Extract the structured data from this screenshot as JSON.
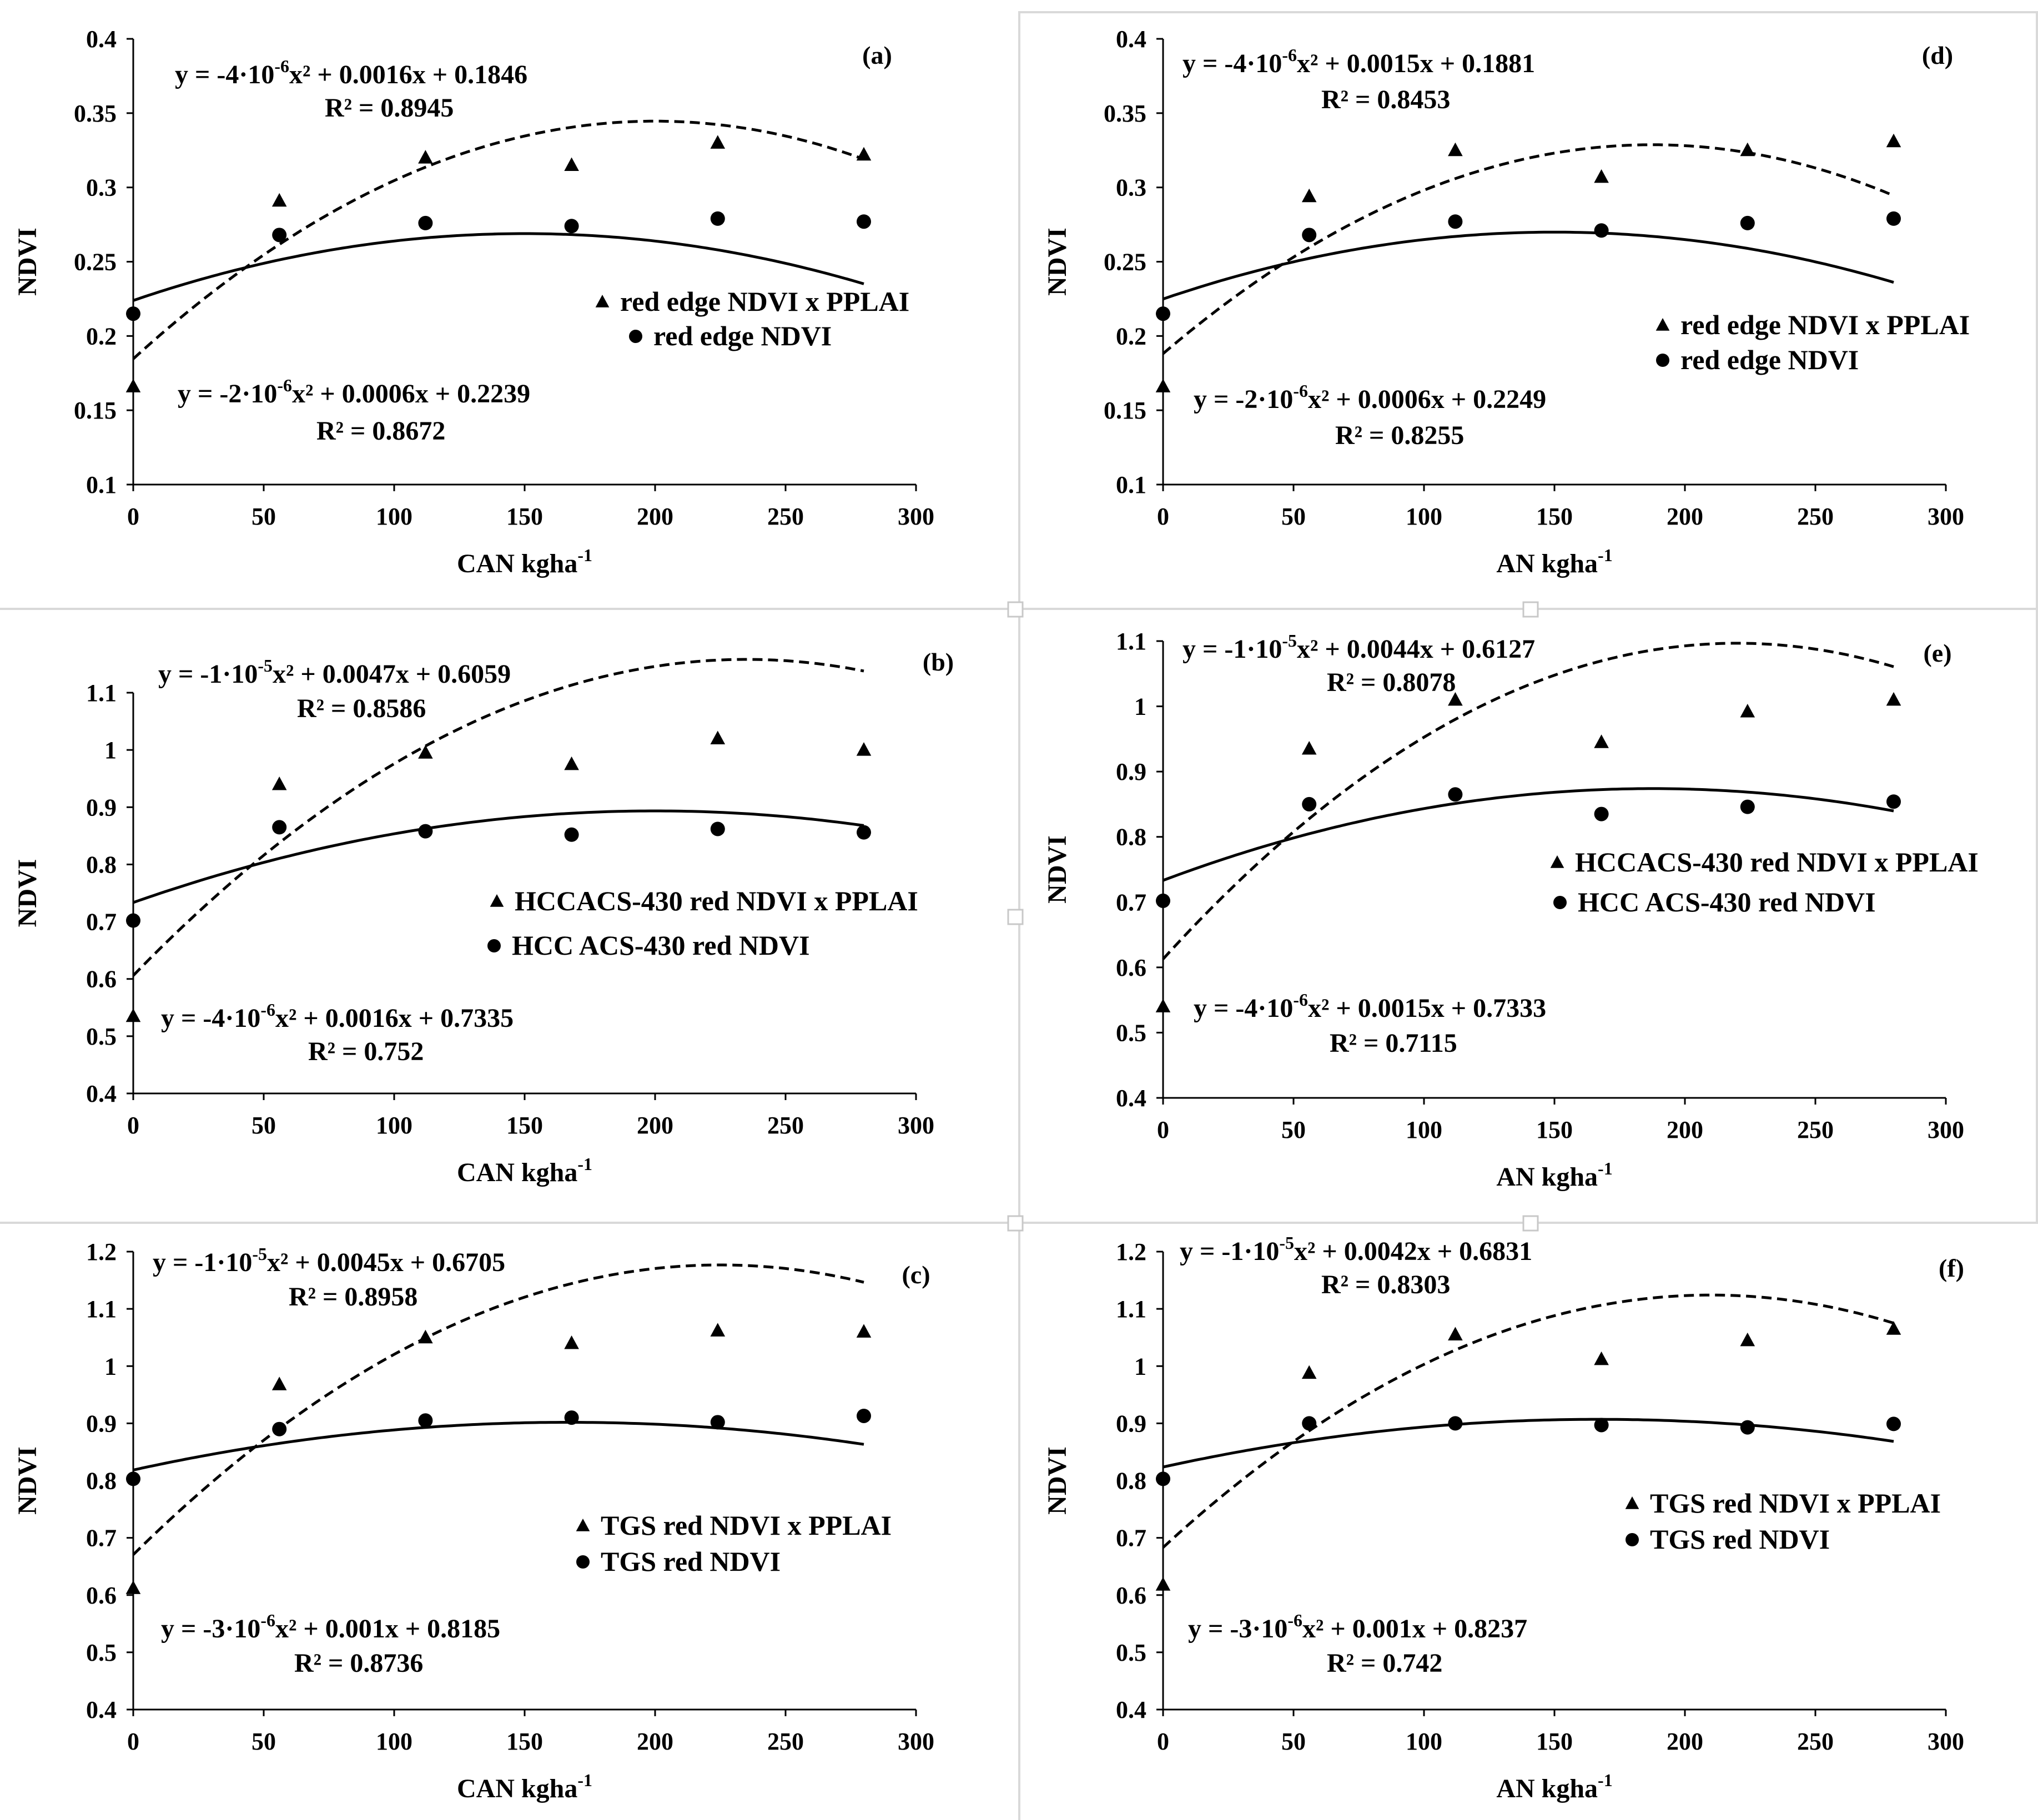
{
  "figure": {
    "shared": {
      "ylabel": "NDVI",
      "x_ticks": [
        "0",
        "50",
        "100",
        "150",
        "200",
        "250",
        "300"
      ],
      "xlim": [
        0,
        300
      ]
    }
  },
  "chart_data": [
    {
      "id": "a",
      "type": "scatter",
      "panel_label": "(a)",
      "xlabel_main": "CAN kgha",
      "xlabel_sup": "-1",
      "ylabel": "NDVI",
      "xlim": [
        0,
        300
      ],
      "ylim": [
        0.1,
        0.4
      ],
      "y_ticks": [
        "0.1",
        "0.15",
        "0.2",
        "0.25",
        "0.3",
        "0.35",
        "0.4"
      ],
      "x_ticks": [
        "0",
        "50",
        "100",
        "150",
        "200",
        "250",
        "300"
      ],
      "x": [
        0,
        56,
        112,
        168,
        224,
        280
      ],
      "series": [
        {
          "name": "red edge NDVI x PPLAI",
          "marker": "triangle",
          "line": "dashed",
          "values": [
            0.166,
            0.291,
            0.32,
            0.315,
            0.33,
            0.322
          ],
          "fit": {
            "a": -4e-06,
            "b": 0.0016,
            "c": 0.1846
          },
          "eq_prefix": "y = -4·10",
          "eq_exp": "-6",
          "eq_suffix": "x² + 0.0016x + 0.1846",
          "r2": "R² = 0.8945"
        },
        {
          "name": "red edge NDVI",
          "marker": "circle",
          "line": "solid",
          "values": [
            0.215,
            0.268,
            0.276,
            0.274,
            0.279,
            0.277
          ],
          "fit": {
            "a": -2e-06,
            "b": 0.0006,
            "c": 0.2239
          },
          "eq_prefix": "y = -2·10",
          "eq_exp": "-6",
          "eq_suffix": "x² + 0.0006x + 0.2239",
          "r2": "R² = 0.8672"
        }
      ]
    },
    {
      "id": "b",
      "type": "scatter",
      "panel_label": "(b)",
      "xlabel_main": "CAN kgha",
      "xlabel_sup": "-1",
      "ylabel": "NDVI",
      "xlim": [
        0,
        300
      ],
      "ylim": [
        0.4,
        1.1
      ],
      "y_ticks": [
        "0.4",
        "0.5",
        "0.6",
        "0.7",
        "0.8",
        "0.9",
        "1",
        "1.1"
      ],
      "x_ticks": [
        "0",
        "50",
        "100",
        "150",
        "200",
        "250",
        "300"
      ],
      "x": [
        0,
        56,
        112,
        168,
        224,
        280
      ],
      "series": [
        {
          "name": "HCCACS-430 red NDVI x PPLAI",
          "marker": "triangle",
          "line": "dashed",
          "values": [
            0.535,
            0.94,
            0.995,
            0.975,
            1.02,
            1.0
          ],
          "fit": {
            "a": -1e-05,
            "b": 0.0047,
            "c": 0.6059
          },
          "eq_prefix": "y = -1·10",
          "eq_exp": "-5",
          "eq_suffix": "x² + 0.0047x + 0.6059",
          "r2": "R² = 0.8586"
        },
        {
          "name": "HCC ACS-430 red NDVI",
          "marker": "circle",
          "line": "solid",
          "values": [
            0.702,
            0.865,
            0.858,
            0.852,
            0.862,
            0.856
          ],
          "fit": {
            "a": -4e-06,
            "b": 0.0016,
            "c": 0.7335
          },
          "eq_prefix": "y = -4·10",
          "eq_exp": "-6",
          "eq_suffix": "x² + 0.0016x + 0.7335",
          "r2": "R² = 0.752"
        }
      ]
    },
    {
      "id": "c",
      "type": "scatter",
      "panel_label": "(c)",
      "xlabel_main": "CAN kgha",
      "xlabel_sup": "-1",
      "ylabel": "NDVI",
      "xlim": [
        0,
        300
      ],
      "ylim": [
        0.4,
        1.2
      ],
      "y_ticks": [
        "0.4",
        "0.5",
        "0.6",
        "0.7",
        "0.8",
        "0.9",
        "1",
        "1.1",
        "1.2"
      ],
      "x_ticks": [
        "0",
        "50",
        "100",
        "150",
        "200",
        "250",
        "300"
      ],
      "x": [
        0,
        56,
        112,
        168,
        224,
        280
      ],
      "series": [
        {
          "name": "TGS red NDVI x PPLAI",
          "marker": "triangle",
          "line": "dashed",
          "values": [
            0.612,
            0.968,
            1.05,
            1.04,
            1.062,
            1.06
          ],
          "fit": {
            "a": -1e-05,
            "b": 0.0045,
            "c": 0.6705
          },
          "eq_prefix": "y = -1·10",
          "eq_exp": "-5",
          "eq_suffix": "x² + 0.0045x + 0.6705",
          "r2": "R² = 0.8958"
        },
        {
          "name": "TGS red NDVI",
          "marker": "circle",
          "line": "solid",
          "values": [
            0.803,
            0.89,
            0.905,
            0.91,
            0.902,
            0.913
          ],
          "fit": {
            "a": -3e-06,
            "b": 0.001,
            "c": 0.8185
          },
          "eq_prefix": "y = -3·10",
          "eq_exp": "-6",
          "eq_suffix": "x² + 0.001x + 0.8185",
          "r2": "R² = 0.8736"
        }
      ]
    },
    {
      "id": "d",
      "type": "scatter",
      "panel_label": "(d)",
      "xlabel_main": "AN kgha",
      "xlabel_sup": "-1",
      "ylabel": "NDVI",
      "xlim": [
        0,
        300
      ],
      "ylim": [
        0.1,
        0.4
      ],
      "y_ticks": [
        "0.1",
        "0.15",
        "0.2",
        "0.25",
        "0.3",
        "0.35",
        "0.4"
      ],
      "x_ticks": [
        "0",
        "50",
        "100",
        "150",
        "200",
        "250",
        "300"
      ],
      "x": [
        0,
        56,
        112,
        168,
        224,
        280
      ],
      "series": [
        {
          "name": "red edge NDVI x PPLAI",
          "marker": "triangle",
          "line": "dashed",
          "values": [
            0.166,
            0.294,
            0.325,
            0.307,
            0.325,
            0.331
          ],
          "fit": {
            "a": -4e-06,
            "b": 0.0015,
            "c": 0.1881
          },
          "eq_prefix": "y = -4·10",
          "eq_exp": "-6",
          "eq_suffix": "x² + 0.0015x + 0.1881",
          "r2": "R² = 0.8453"
        },
        {
          "name": "red edge NDVI",
          "marker": "circle",
          "line": "solid",
          "values": [
            0.215,
            0.268,
            0.277,
            0.271,
            0.276,
            0.279
          ],
          "fit": {
            "a": -2e-06,
            "b": 0.0006,
            "c": 0.2249
          },
          "eq_prefix": "y = -2·10",
          "eq_exp": "-6",
          "eq_suffix": "x² + 0.0006x + 0.2249",
          "r2": "R² = 0.8255"
        }
      ]
    },
    {
      "id": "e",
      "type": "scatter",
      "panel_label": "(e)",
      "xlabel_main": "AN kgha",
      "xlabel_sup": "-1",
      "ylabel": "NDVI",
      "xlim": [
        0,
        300
      ],
      "ylim": [
        0.4,
        1.1
      ],
      "y_ticks": [
        "0.4",
        "0.5",
        "0.6",
        "0.7",
        "0.8",
        "0.9",
        "1",
        "1.1"
      ],
      "x_ticks": [
        "0",
        "50",
        "100",
        "150",
        "200",
        "250",
        "300"
      ],
      "x": [
        0,
        56,
        112,
        168,
        224,
        280
      ],
      "series": [
        {
          "name": "HCCACS-430 red NDVI x PPLAI",
          "marker": "triangle",
          "line": "dashed",
          "values": [
            0.54,
            0.935,
            1.01,
            0.945,
            0.992,
            1.01
          ],
          "fit": {
            "a": -1e-05,
            "b": 0.0044,
            "c": 0.6127
          },
          "eq_prefix": "y = -1·10",
          "eq_exp": "-5",
          "eq_suffix": "x² + 0.0044x + 0.6127",
          "r2": "R² = 0.8078"
        },
        {
          "name": "HCC ACS-430 red NDVI",
          "marker": "circle",
          "line": "solid",
          "values": [
            0.702,
            0.85,
            0.865,
            0.835,
            0.846,
            0.854
          ],
          "fit": {
            "a": -4e-06,
            "b": 0.0015,
            "c": 0.7333
          },
          "eq_prefix": "y = -4·10",
          "eq_exp": "-6",
          "eq_suffix": "x² + 0.0015x + 0.7333",
          "r2": "R² = 0.7115"
        }
      ]
    },
    {
      "id": "f",
      "type": "scatter",
      "panel_label": "(f)",
      "xlabel_main": "AN kgha",
      "xlabel_sup": "-1",
      "ylabel": "NDVI",
      "xlim": [
        0,
        300
      ],
      "ylim": [
        0.4,
        1.2
      ],
      "y_ticks": [
        "0.4",
        "0.5",
        "0.6",
        "0.7",
        "0.8",
        "0.9",
        "1",
        "1.1",
        "1.2"
      ],
      "x_ticks": [
        "0",
        "50",
        "100",
        "150",
        "200",
        "250",
        "300"
      ],
      "x": [
        0,
        56,
        112,
        168,
        224,
        280
      ],
      "series": [
        {
          "name": "TGS red NDVI x PPLAI",
          "marker": "triangle",
          "line": "dashed",
          "values": [
            0.618,
            0.988,
            1.055,
            1.012,
            1.045,
            1.065
          ],
          "fit": {
            "a": -1e-05,
            "b": 0.0042,
            "c": 0.6831
          },
          "eq_prefix": "y = -1·10",
          "eq_exp": "-5",
          "eq_suffix": "x² + 0.0042x + 0.6831",
          "r2": "R² = 0.8303"
        },
        {
          "name": "TGS red NDVI",
          "marker": "circle",
          "line": "solid",
          "values": [
            0.803,
            0.9,
            0.9,
            0.897,
            0.893,
            0.899
          ],
          "fit": {
            "a": -3e-06,
            "b": 0.001,
            "c": 0.8237
          },
          "eq_prefix": "y = -3·10",
          "eq_exp": "-6",
          "eq_suffix": "x² + 0.001x + 0.8237",
          "r2": "R² = 0.742"
        }
      ]
    }
  ]
}
